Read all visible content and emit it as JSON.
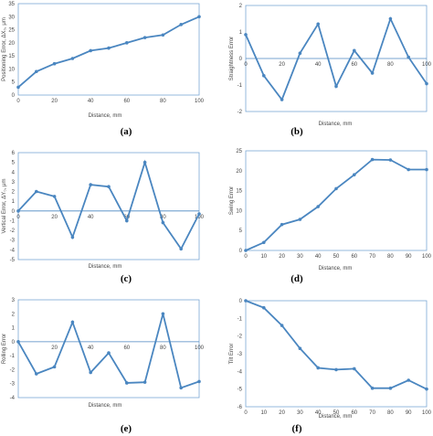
{
  "figure": {
    "panel_labels": [
      "(a)",
      "(b)",
      "(c)",
      "(d)",
      "(e)",
      "(f)"
    ]
  },
  "style": {
    "line_color": "#4a86c0",
    "frame_color": "#7aa7d6",
    "zero_line_color": "#4a86c0"
  },
  "chart_data": [
    {
      "type": "line",
      "xlabel": "Distance, mm",
      "ylabel": "Positioning Error, ΔX₀, μm",
      "xlim": [
        0,
        100
      ],
      "ylim": [
        0,
        35
      ],
      "xticks": [
        0,
        20,
        40,
        60,
        80,
        100
      ],
      "yticks": [
        0,
        5,
        10,
        15,
        20,
        25,
        30,
        35
      ],
      "x": [
        0,
        10,
        20,
        30,
        40,
        50,
        60,
        70,
        80,
        90,
        100
      ],
      "y": [
        3,
        9,
        12,
        14,
        17,
        18,
        20,
        22,
        23,
        27,
        30
      ]
    },
    {
      "type": "line",
      "xlabel": "Distance, mm",
      "ylabel": "Straightness Error",
      "xlim": [
        0,
        100
      ],
      "ylim": [
        -2,
        2
      ],
      "xticks": [
        0,
        20,
        40,
        60,
        80,
        100
      ],
      "yticks": [
        2,
        1,
        0,
        -1,
        -2
      ],
      "x": [
        0,
        10,
        20,
        30,
        40,
        50,
        60,
        70,
        80,
        90,
        100
      ],
      "y": [
        0.9,
        -0.65,
        -1.55,
        0.2,
        1.3,
        -1.05,
        0.3,
        -0.55,
        1.5,
        0.05,
        -0.95
      ]
    },
    {
      "type": "line",
      "xlabel": "Distance, mm",
      "ylabel": "Vertical Error, ΔY₀, μm",
      "xlim": [
        0,
        100
      ],
      "ylim": [
        -5,
        6
      ],
      "xticks": [
        0,
        20,
        40,
        60,
        80,
        100
      ],
      "yticks": [
        6,
        5,
        4,
        3,
        2,
        1,
        0,
        -1,
        -2,
        -3,
        -4,
        -5
      ],
      "x": [
        0,
        10,
        20,
        30,
        40,
        50,
        60,
        70,
        80,
        90,
        100
      ],
      "y": [
        0,
        2,
        1.5,
        -2.7,
        2.7,
        2.5,
        -1,
        5,
        -1.2,
        -3.9,
        -0.3
      ]
    },
    {
      "type": "line",
      "xlabel": "Distance, mm",
      "ylabel": "Swing Error",
      "xlim": [
        0,
        100
      ],
      "ylim": [
        0,
        25
      ],
      "xticks": [
        0,
        10,
        20,
        30,
        40,
        50,
        60,
        70,
        80,
        90,
        100
      ],
      "yticks": [
        0,
        5,
        10,
        15,
        20,
        25
      ],
      "x": [
        0,
        10,
        20,
        30,
        40,
        50,
        60,
        70,
        80,
        90,
        100
      ],
      "y": [
        0,
        2,
        6.5,
        7.8,
        11,
        15.5,
        19,
        22.8,
        22.7,
        20.3,
        20.3
      ]
    },
    {
      "type": "line",
      "xlabel": "Distance, mm",
      "ylabel": "Rolling Error",
      "xlim": [
        0,
        100
      ],
      "ylim": [
        -4,
        3
      ],
      "xticks": [
        20,
        40,
        60,
        80,
        100
      ],
      "yticks": [
        3,
        2,
        1,
        0,
        -1,
        -2,
        -3,
        -4
      ],
      "x": [
        0,
        10,
        20,
        30,
        40,
        50,
        60,
        70,
        80,
        90,
        100
      ],
      "y": [
        0,
        -2.3,
        -1.8,
        1.4,
        -2.2,
        -0.8,
        -2.95,
        -2.9,
        2,
        -3.3,
        -2.85
      ]
    },
    {
      "type": "line",
      "xlabel": "Distance, mm",
      "ylabel": "Tilt Error",
      "xlim": [
        0,
        100
      ],
      "ylim": [
        -6,
        0
      ],
      "xticks": [
        0,
        10,
        20,
        30,
        40,
        50,
        60,
        70,
        80,
        90,
        100
      ],
      "yticks": [
        0,
        -1,
        -2,
        -3,
        -4,
        -5,
        -6
      ],
      "x": [
        0,
        10,
        20,
        30,
        40,
        50,
        60,
        70,
        80,
        90,
        100
      ],
      "y": [
        0,
        -0.4,
        -1.4,
        -2.7,
        -3.8,
        -3.9,
        -3.85,
        -4.95,
        -4.95,
        -4.5,
        -5
      ]
    }
  ]
}
